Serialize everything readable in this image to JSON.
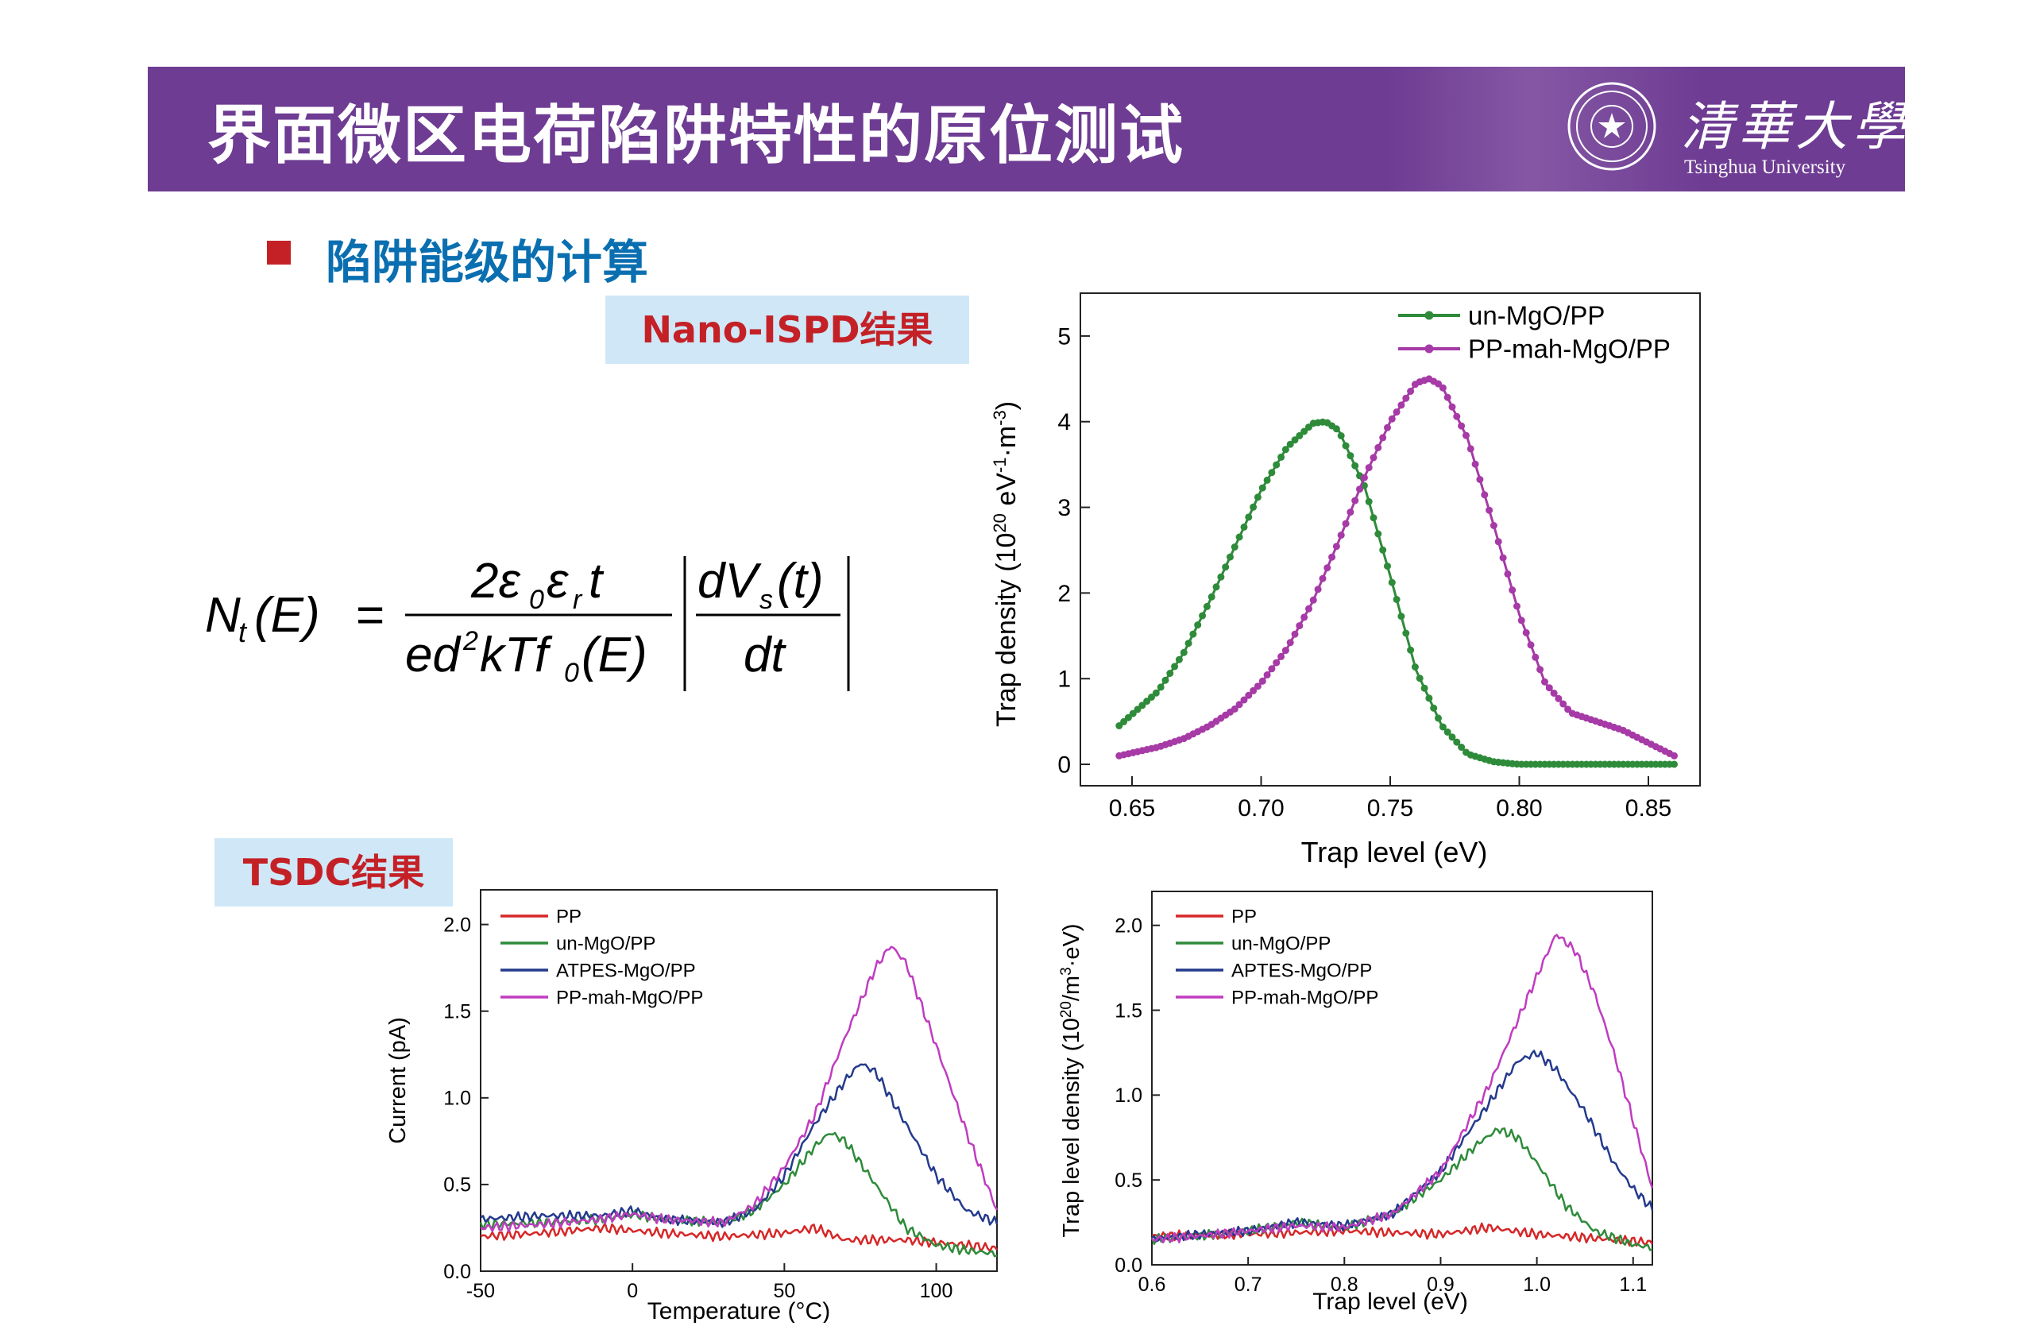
{
  "header": {
    "title": "界面微区电荷陷阱特性的原位测试",
    "logo_cn": "清華大學",
    "logo_en": "Tsinghua University"
  },
  "section": {
    "heading": "陷阱能级的计算",
    "nano_tag": "Nano-ISPD结果",
    "tsdc_tag": "TSDC结果"
  },
  "formula": {
    "lhs": "N",
    "lhs_sub": "t",
    "lhs_arg": "(E)",
    "eq": "=",
    "num1": "2ε",
    "num1_sub": "0",
    "num1_b": "ε",
    "num1_b_sub": "r",
    "num1_c": "t",
    "den1": "ed",
    "den1_sup": "2",
    "den1_b": "kTf",
    "den1_b_sub": "0",
    "den1_c": "(E)",
    "num2": "dV",
    "num2_sub": "s",
    "num2_c": "(t)",
    "den2": "dt"
  },
  "colors": {
    "banner": "#6e3c93",
    "bullet": "#c42127",
    "heading": "#0a6fb0",
    "tag_bg": "#cfe7f7",
    "green": "#2e8b3a",
    "magenta": "#a63aa6",
    "red": "#d62728",
    "navy": "#243a8c",
    "purple": "#c03cc0"
  },
  "chart_data": [
    {
      "type": "line",
      "xlabel": "Trap level (eV)",
      "ylabel": "Trap density (10^20 eV^-1·m^-3)",
      "ylabel_parts": {
        "a": "Trap density (10",
        "b": "20",
        "c": " eV",
        "d": "-1",
        "e": "·m",
        "f": "-3",
        "g": ")"
      },
      "xlim": [
        0.63,
        0.87
      ],
      "ylim": [
        -0.25,
        5.5
      ],
      "xticks": [
        0.65,
        0.7,
        0.75,
        0.8,
        0.85
      ],
      "xtick_labels": [
        "0.65",
        "0.70",
        "0.75",
        "0.80",
        "0.85"
      ],
      "yticks": [
        0,
        1,
        2,
        3,
        4,
        5
      ],
      "ytick_labels": [
        "0",
        "1",
        "2",
        "3",
        "4",
        "5"
      ],
      "legend": "top-right",
      "series": [
        {
          "name": "un-MgO/PP",
          "color": "#2e8b3a",
          "x": [
            0.645,
            0.66,
            0.67,
            0.68,
            0.69,
            0.7,
            0.71,
            0.72,
            0.725,
            0.73,
            0.74,
            0.75,
            0.76,
            0.77,
            0.78,
            0.79,
            0.8,
            0.82,
            0.84,
            0.86
          ],
          "y": [
            0.45,
            0.85,
            1.3,
            1.9,
            2.55,
            3.2,
            3.7,
            3.98,
            4.0,
            3.9,
            3.25,
            2.2,
            1.1,
            0.45,
            0.12,
            0.03,
            0.0,
            0.0,
            0.0,
            0.0
          ]
        },
        {
          "name": "PP-mah-MgO/PP",
          "color": "#a63aa6",
          "x": [
            0.645,
            0.66,
            0.67,
            0.68,
            0.69,
            0.7,
            0.71,
            0.72,
            0.73,
            0.74,
            0.75,
            0.76,
            0.765,
            0.77,
            0.78,
            0.79,
            0.8,
            0.81,
            0.82,
            0.83,
            0.84,
            0.85,
            0.86
          ],
          "y": [
            0.1,
            0.2,
            0.3,
            0.45,
            0.65,
            0.95,
            1.35,
            1.9,
            2.6,
            3.35,
            4.0,
            4.45,
            4.5,
            4.42,
            3.8,
            2.8,
            1.75,
            0.95,
            0.6,
            0.5,
            0.4,
            0.25,
            0.1
          ]
        }
      ]
    },
    {
      "type": "line",
      "xlabel": "Temperature (°C)",
      "ylabel": "Current (pA)",
      "xlim": [
        -50,
        120
      ],
      "ylim": [
        0.0,
        2.2
      ],
      "xticks": [
        -50,
        0,
        50,
        100
      ],
      "xtick_labels": [
        "-50",
        "0",
        "50",
        "100"
      ],
      "yticks": [
        0.0,
        0.5,
        1.0,
        1.5,
        2.0
      ],
      "ytick_labels": [
        "0.0",
        "0.5",
        "1.0",
        "1.5",
        "2.0"
      ],
      "legend": "top-left",
      "series": [
        {
          "name": "PP",
          "color": "#d62728",
          "x": [
            -50,
            -30,
            -10,
            10,
            30,
            50,
            60,
            70,
            90,
            110,
            120
          ],
          "y": [
            0.2,
            0.22,
            0.25,
            0.22,
            0.2,
            0.22,
            0.25,
            0.18,
            0.18,
            0.15,
            0.13
          ]
        },
        {
          "name": "un-MgO/PP",
          "color": "#2e8b3a",
          "x": [
            -50,
            -30,
            -10,
            0,
            10,
            30,
            40,
            50,
            60,
            65,
            70,
            80,
            90,
            100,
            110,
            120
          ],
          "y": [
            0.27,
            0.28,
            0.3,
            0.33,
            0.3,
            0.28,
            0.35,
            0.5,
            0.72,
            0.8,
            0.75,
            0.5,
            0.25,
            0.15,
            0.12,
            0.1
          ]
        },
        {
          "name": "ATPES-MgO/PP",
          "color": "#243a8c",
          "x": [
            -50,
            -30,
            -10,
            0,
            10,
            30,
            40,
            50,
            60,
            70,
            75,
            80,
            90,
            100,
            110,
            120
          ],
          "y": [
            0.3,
            0.32,
            0.32,
            0.35,
            0.3,
            0.28,
            0.35,
            0.55,
            0.85,
            1.1,
            1.2,
            1.15,
            0.85,
            0.55,
            0.35,
            0.28
          ]
        },
        {
          "name": "PP-mah-MgO/PP",
          "color": "#c03cc0",
          "x": [
            -50,
            -30,
            -10,
            0,
            10,
            30,
            40,
            50,
            60,
            70,
            80,
            85,
            90,
            100,
            110,
            120
          ],
          "y": [
            0.25,
            0.27,
            0.3,
            0.33,
            0.3,
            0.28,
            0.38,
            0.6,
            0.9,
            1.35,
            1.75,
            1.88,
            1.78,
            1.3,
            0.8,
            0.35
          ]
        }
      ]
    },
    {
      "type": "line",
      "xlabel": "Trap level (eV)",
      "ylabel": "Trap level density (10^20/m^3·eV)",
      "ylabel_parts": {
        "a": "Trap level density (10",
        "b": "20",
        "c": "/m",
        "d": "3",
        "e": "·eV)"
      },
      "xlim": [
        0.6,
        1.12
      ],
      "ylim": [
        0.0,
        2.2
      ],
      "xticks": [
        0.6,
        0.7,
        0.8,
        0.9,
        1.0,
        1.1
      ],
      "xtick_labels": [
        "0.6",
        "0.7",
        "0.8",
        "0.9",
        "1.0",
        "1.1"
      ],
      "yticks": [
        0.0,
        0.5,
        1.0,
        1.5,
        2.0
      ],
      "ytick_labels": [
        "0.0",
        "0.5",
        "1.0",
        "1.5",
        "2.0"
      ],
      "legend": "top-left",
      "series": [
        {
          "name": "PP",
          "color": "#d62728",
          "x": [
            0.6,
            0.7,
            0.8,
            0.9,
            0.95,
            1.0,
            1.05,
            1.1,
            1.12
          ],
          "y": [
            0.17,
            0.18,
            0.2,
            0.18,
            0.22,
            0.18,
            0.16,
            0.14,
            0.13
          ]
        },
        {
          "name": "un-MgO/PP",
          "color": "#2e8b3a",
          "x": [
            0.6,
            0.65,
            0.7,
            0.75,
            0.8,
            0.85,
            0.9,
            0.94,
            0.96,
            0.98,
            1.0,
            1.03,
            1.06,
            1.1,
            1.12
          ],
          "y": [
            0.15,
            0.17,
            0.2,
            0.25,
            0.22,
            0.3,
            0.5,
            0.72,
            0.8,
            0.75,
            0.6,
            0.35,
            0.2,
            0.12,
            0.1
          ]
        },
        {
          "name": "APTES-MgO/PP",
          "color": "#243a8c",
          "x": [
            0.6,
            0.65,
            0.7,
            0.75,
            0.8,
            0.85,
            0.9,
            0.95,
            0.98,
            1.0,
            1.02,
            1.05,
            1.08,
            1.1,
            1.12
          ],
          "y": [
            0.15,
            0.18,
            0.2,
            0.25,
            0.23,
            0.3,
            0.55,
            0.95,
            1.2,
            1.25,
            1.15,
            0.9,
            0.6,
            0.45,
            0.33
          ]
        },
        {
          "name": "PP-mah-MgO/PP",
          "color": "#c03cc0",
          "x": [
            0.6,
            0.65,
            0.7,
            0.75,
            0.8,
            0.85,
            0.9,
            0.95,
            1.0,
            1.02,
            1.04,
            1.06,
            1.08,
            1.1,
            1.12
          ],
          "y": [
            0.15,
            0.17,
            0.2,
            0.23,
            0.22,
            0.3,
            0.55,
            1.05,
            1.7,
            1.95,
            1.85,
            1.6,
            1.25,
            0.85,
            0.45
          ]
        }
      ]
    }
  ]
}
